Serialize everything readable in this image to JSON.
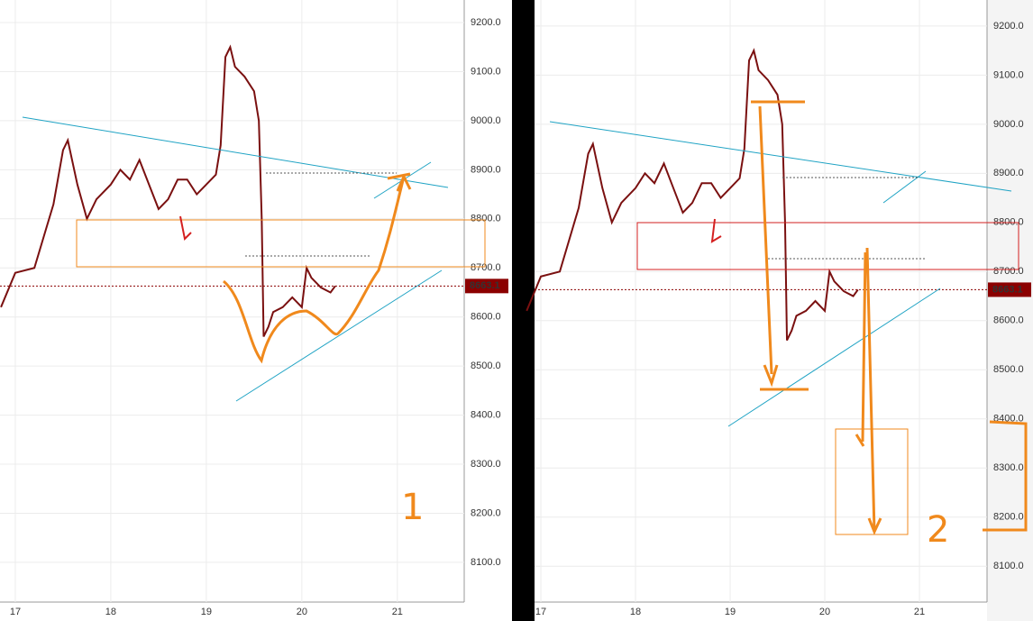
{
  "chart_data": [
    {
      "type": "line",
      "color": "#7a1010",
      "x": [
        16.85,
        17.0,
        17.2,
        17.4,
        17.5,
        17.55,
        17.65,
        17.75,
        17.85,
        18.0,
        18.1,
        18.2,
        18.3,
        18.4,
        18.5,
        18.6,
        18.7,
        18.8,
        18.9,
        19.0,
        19.1,
        19.15,
        19.2,
        19.25,
        19.3,
        19.4,
        19.5,
        19.55,
        19.58,
        19.6,
        19.65,
        19.7,
        19.8,
        19.9,
        20.0,
        20.05,
        20.1,
        20.2,
        20.3,
        20.35
      ],
      "values": [
        8620,
        8690,
        8700,
        8830,
        8940,
        8960,
        8870,
        8800,
        8840,
        8870,
        8900,
        8880,
        8920,
        8870,
        8820,
        8840,
        8880,
        8880,
        8850,
        8870,
        8890,
        8950,
        9130,
        9150,
        9110,
        9090,
        9060,
        9000,
        8800,
        8560,
        8580,
        8610,
        8620,
        8640,
        8620,
        8700,
        8680,
        8660,
        8650,
        8663.1
      ],
      "last_price": 8663.1,
      "xlim": [
        16.84,
        21.7
      ],
      "xticks": [
        17,
        18,
        19,
        20,
        21
      ],
      "ylim": [
        8019,
        9246
      ],
      "yticks": [
        {
          "value": 8100,
          "label": "8100.0"
        },
        {
          "value": 8200,
          "label": "8200.0"
        },
        {
          "value": 8300,
          "label": "8300.0"
        },
        {
          "value": 8400,
          "label": "8400.0"
        },
        {
          "value": 8500,
          "label": "8500.0"
        },
        {
          "value": 8600,
          "label": "8600.0"
        },
        {
          "value": 8700,
          "label": "8700.0"
        },
        {
          "value": 8800,
          "label": "8800.0"
        },
        {
          "value": 8900,
          "label": "8900.0"
        },
        {
          "value": 9000,
          "label": "9000.0"
        },
        {
          "value": 9100,
          "label": "9100.0"
        },
        {
          "value": 9200,
          "label": "9200.0"
        }
      ],
      "grid": true,
      "annotation": "1"
    },
    {
      "type": "line",
      "color": "#7a1010",
      "x": [
        16.85,
        17.0,
        17.2,
        17.4,
        17.5,
        17.55,
        17.65,
        17.75,
        17.85,
        18.0,
        18.1,
        18.2,
        18.3,
        18.4,
        18.5,
        18.6,
        18.7,
        18.8,
        18.9,
        19.0,
        19.1,
        19.15,
        19.2,
        19.25,
        19.3,
        19.4,
        19.5,
        19.55,
        19.58,
        19.6,
        19.65,
        19.7,
        19.8,
        19.9,
        20.0,
        20.05,
        20.1,
        20.2,
        20.3,
        20.35
      ],
      "values": [
        8620,
        8690,
        8700,
        8830,
        8940,
        8960,
        8870,
        8800,
        8840,
        8870,
        8900,
        8880,
        8920,
        8870,
        8820,
        8840,
        8880,
        8880,
        8850,
        8870,
        8890,
        8950,
        9130,
        9150,
        9110,
        9090,
        9060,
        9000,
        8800,
        8560,
        8580,
        8610,
        8620,
        8640,
        8620,
        8700,
        8680,
        8660,
        8650,
        8663.1
      ],
      "last_price": 8663.1,
      "xlim": [
        16.933,
        21.714
      ],
      "xticks": [
        17,
        18,
        19,
        20,
        21
      ],
      "ylim": [
        8027,
        9253
      ],
      "yticks": [
        {
          "value": 8100,
          "label": "8100.0"
        },
        {
          "value": 8200,
          "label": "8200.0"
        },
        {
          "value": 8300,
          "label": "8300.0"
        },
        {
          "value": 8400,
          "label": "8400.0"
        },
        {
          "value": 8500,
          "label": "8500.0"
        },
        {
          "value": 8600,
          "label": "8600.0"
        },
        {
          "value": 8700,
          "label": "8700.0"
        },
        {
          "value": 8800,
          "label": "8800.0"
        },
        {
          "value": 8900,
          "label": "8900.0"
        },
        {
          "value": 9000,
          "label": "9000.0"
        },
        {
          "value": 9100,
          "label": "9100.0"
        },
        {
          "value": 9200,
          "label": "9200.0"
        }
      ],
      "grid": true,
      "annotation": "2"
    }
  ]
}
